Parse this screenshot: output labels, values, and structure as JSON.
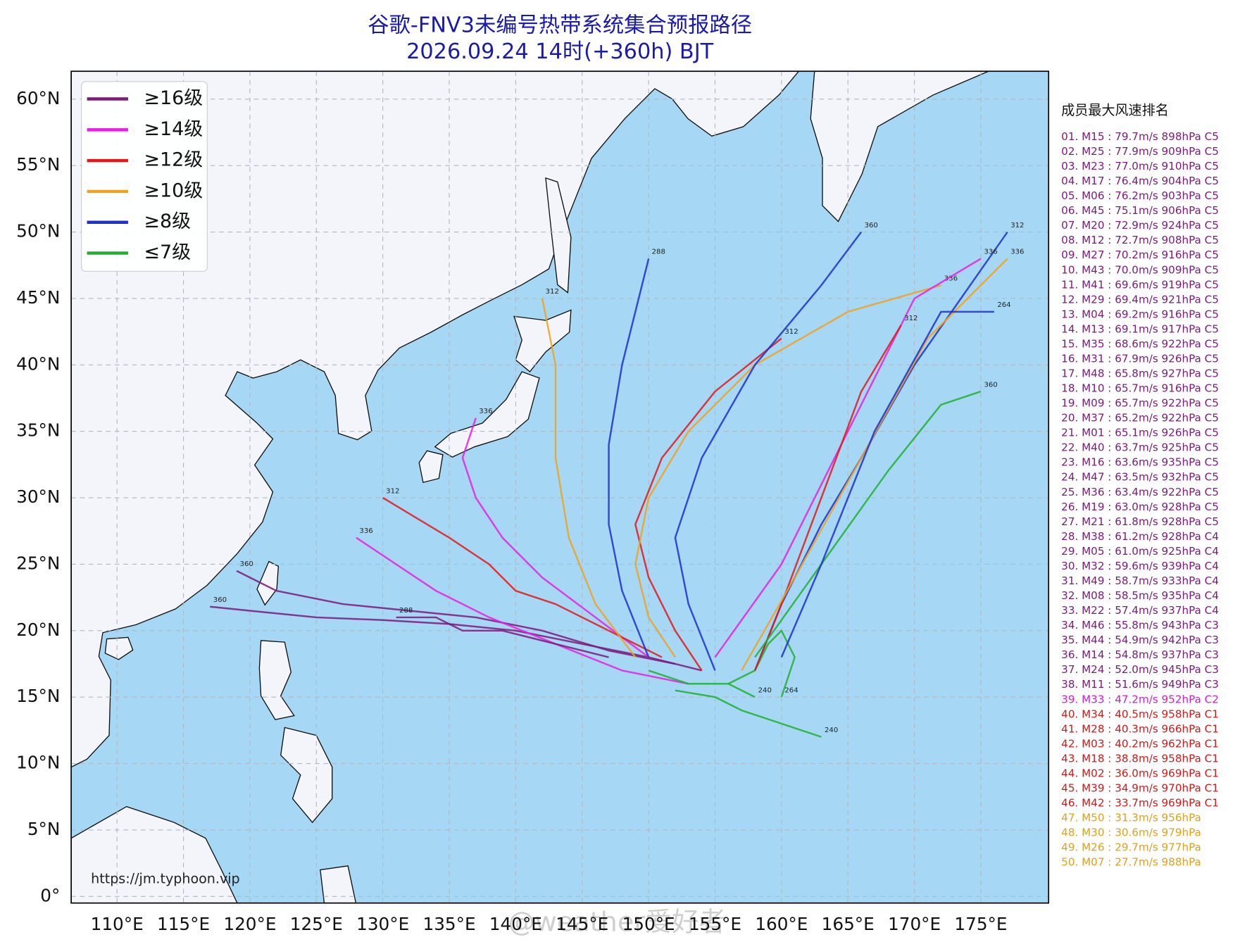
{
  "map": {
    "title": "谷歌-FNV3未编号热带系统集合预报路径",
    "subtitle": "2026.09.24 14时(+360h) BJT",
    "lonlim": [
      106.55,
      180.1
    ],
    "latlim": [
      -0.5,
      62.1
    ],
    "lonticks": [
      {
        "value": 110,
        "label": "110°E"
      },
      {
        "value": 115,
        "label": "115°E"
      },
      {
        "value": 120,
        "label": "120°E"
      },
      {
        "value": 125,
        "label": "125°E"
      },
      {
        "value": 130,
        "label": "130°E"
      },
      {
        "value": 135,
        "label": "135°E"
      },
      {
        "value": 140,
        "label": "140°E"
      },
      {
        "value": 145,
        "label": "145°E"
      },
      {
        "value": 150,
        "label": "150°E"
      },
      {
        "value": 155,
        "label": "155°E"
      },
      {
        "value": 160,
        "label": "160°E"
      },
      {
        "value": 165,
        "label": "165°E"
      },
      {
        "value": 170,
        "label": "170°E"
      },
      {
        "value": 175,
        "label": "175°E"
      }
    ],
    "latticks": [
      {
        "value": 0,
        "label": "0°"
      },
      {
        "value": 5,
        "label": "5°N"
      },
      {
        "value": 10,
        "label": "10°N"
      },
      {
        "value": 15,
        "label": "15°N"
      },
      {
        "value": 20,
        "label": "20°N"
      },
      {
        "value": 25,
        "label": "25°N"
      },
      {
        "value": 30,
        "label": "30°N"
      },
      {
        "value": 35,
        "label": "35°N"
      },
      {
        "value": 40,
        "label": "40°N"
      },
      {
        "value": 45,
        "label": "45°N"
      },
      {
        "value": 50,
        "label": "50°N"
      },
      {
        "value": 55,
        "label": "55°N"
      },
      {
        "value": 60,
        "label": "60°N"
      }
    ],
    "grid": true,
    "legend": [
      {
        "name": "≥16级",
        "color": "#7b1a7b"
      },
      {
        "name": "≥14级",
        "color": "#e61ee6"
      },
      {
        "name": "≥12级",
        "color": "#e01a1a"
      },
      {
        "name": "≥10级",
        "color": "#f0a21e"
      },
      {
        "name": "≥8级",
        "color": "#1f2fd0"
      },
      {
        "name": "≤7级",
        "color": "#20b030"
      }
    ],
    "tracks": [
      {
        "color": "#7b1a7b",
        "lon": [
          154,
          150,
          145,
          140,
          135,
          130,
          125,
          120,
          117
        ],
        "lat": [
          17,
          18,
          19,
          20,
          20.5,
          20.8,
          21,
          21.5,
          21.8
        ],
        "label": "360"
      },
      {
        "color": "#7b1a7b",
        "lon": [
          152,
          147,
          142,
          137,
          132,
          127,
          122,
          119
        ],
        "lat": [
          17.5,
          18.5,
          20,
          21,
          21.5,
          22,
          23,
          24.5
        ],
        "label": "360"
      },
      {
        "color": "#e61ee6",
        "lon": [
          153,
          148,
          143,
          138,
          134,
          131,
          128
        ],
        "lat": [
          16,
          17,
          19,
          21,
          23,
          25,
          27
        ],
        "label": "336"
      },
      {
        "color": "#e61ee6",
        "lon": [
          150,
          146,
          142,
          139,
          137,
          136,
          137
        ],
        "lat": [
          18,
          21,
          24,
          27,
          30,
          33,
          36
        ],
        "label": "336"
      },
      {
        "color": "#e01a1a",
        "lon": [
          151,
          147,
          143,
          140,
          138,
          135,
          130
        ],
        "lat": [
          18,
          20,
          22,
          23,
          25,
          27,
          30
        ],
        "label": "312"
      },
      {
        "color": "#e01a1a",
        "lon": [
          154,
          152,
          150,
          149,
          151,
          155,
          160
        ],
        "lat": [
          17,
          20,
          24,
          28,
          33,
          38,
          42
        ],
        "label": "312"
      },
      {
        "color": "#f0a21e",
        "lon": [
          152,
          150,
          149,
          150,
          153,
          158,
          165,
          172
        ],
        "lat": [
          18,
          21,
          25,
          30,
          35,
          40,
          44,
          46
        ],
        "label": "336"
      },
      {
        "color": "#f0a21e",
        "lon": [
          149,
          146,
          144,
          143,
          143,
          142
        ],
        "lat": [
          18,
          22,
          27,
          33,
          40,
          45
        ],
        "label": "312"
      },
      {
        "color": "#1f2fd0",
        "lon": [
          155,
          153,
          152,
          154,
          158,
          163,
          166
        ],
        "lat": [
          17,
          22,
          27,
          33,
          40,
          46,
          50
        ],
        "label": "360"
      },
      {
        "color": "#1f2fd0",
        "lon": [
          150,
          148,
          147,
          147,
          148,
          150
        ],
        "lat": [
          18,
          23,
          28,
          34,
          40,
          48
        ],
        "label": "288"
      },
      {
        "color": "#1f2fd0",
        "lon": [
          158,
          160,
          163,
          166,
          170,
          177
        ],
        "lat": [
          17,
          22,
          28,
          33,
          40,
          50
        ],
        "label": "312"
      },
      {
        "color": "#20b030",
        "lon": [
          156,
          158,
          159,
          160,
          161,
          160
        ],
        "lat": [
          16,
          17,
          19,
          20,
          18,
          15
        ],
        "label": "264"
      },
      {
        "color": "#20b030",
        "lon": [
          150,
          153,
          156,
          158
        ],
        "lat": [
          17,
          16,
          16,
          15
        ],
        "label": "240"
      },
      {
        "color": "#20b030",
        "lon": [
          152,
          155,
          157,
          160,
          163
        ],
        "lat": [
          15.5,
          15,
          14,
          13,
          12
        ],
        "label": "240"
      },
      {
        "color": "#7b1a7b",
        "lon": [
          147,
          143,
          139,
          136,
          134,
          131
        ],
        "lat": [
          18,
          19,
          20,
          20,
          21,
          21
        ],
        "label": "288"
      },
      {
        "color": "#e61ee6",
        "lon": [
          155,
          160,
          165,
          170,
          175
        ],
        "lat": [
          18,
          25,
          35,
          45,
          48
        ],
        "label": "336"
      },
      {
        "color": "#e01a1a",
        "lon": [
          158,
          160,
          163,
          166,
          169
        ],
        "lat": [
          17,
          22,
          30,
          38,
          43
        ],
        "label": "312"
      },
      {
        "color": "#f0a21e",
        "lon": [
          157,
          161,
          166,
          171,
          177
        ],
        "lat": [
          17,
          24,
          33,
          42,
          48
        ],
        "label": "336"
      },
      {
        "color": "#20b030",
        "lon": [
          158,
          163,
          168,
          172,
          175
        ],
        "lat": [
          18,
          25,
          32,
          37,
          38
        ],
        "label": "360"
      },
      {
        "color": "#1f2fd0",
        "lon": [
          160,
          163,
          167,
          172,
          176
        ],
        "lat": [
          18,
          25,
          35,
          44,
          44
        ],
        "label": "264"
      }
    ],
    "ranking_title": "成员最大风速排名",
    "ranking": [
      {
        "text": "01. M15 : 79.7m/s 898hPa C5",
        "color": "#7b1a7b"
      },
      {
        "text": "02. M25 : 77.9m/s 909hPa C5",
        "color": "#7b1a7b"
      },
      {
        "text": "03. M23 : 77.0m/s 910hPa C5",
        "color": "#7b1a7b"
      },
      {
        "text": "04. M17 : 76.4m/s 904hPa C5",
        "color": "#7b1a7b"
      },
      {
        "text": "05. M06 : 76.2m/s 903hPa C5",
        "color": "#7b1a7b"
      },
      {
        "text": "06. M45 : 75.1m/s 906hPa C5",
        "color": "#7b1a7b"
      },
      {
        "text": "07. M20 : 72.9m/s 924hPa C5",
        "color": "#7b1a7b"
      },
      {
        "text": "08. M12 : 72.7m/s 908hPa C5",
        "color": "#7b1a7b"
      },
      {
        "text": "09. M27 : 70.2m/s 916hPa C5",
        "color": "#7b1a7b"
      },
      {
        "text": "10. M43 : 70.0m/s 909hPa C5",
        "color": "#7b1a7b"
      },
      {
        "text": "11. M41 : 69.6m/s 919hPa C5",
        "color": "#7b1a7b"
      },
      {
        "text": "12. M29 : 69.4m/s 921hPa C5",
        "color": "#7b1a7b"
      },
      {
        "text": "13. M04 : 69.2m/s 916hPa C5",
        "color": "#7b1a7b"
      },
      {
        "text": "14. M13 : 69.1m/s 917hPa C5",
        "color": "#7b1a7b"
      },
      {
        "text": "15. M35 : 68.6m/s 922hPa C5",
        "color": "#7b1a7b"
      },
      {
        "text": "16. M31 : 67.9m/s 926hPa C5",
        "color": "#7b1a7b"
      },
      {
        "text": "17. M48 : 65.8m/s 927hPa C5",
        "color": "#7b1a7b"
      },
      {
        "text": "18. M10 : 65.7m/s 916hPa C5",
        "color": "#7b1a7b"
      },
      {
        "text": "19. M09 : 65.7m/s 922hPa C5",
        "color": "#7b1a7b"
      },
      {
        "text": "20. M37 : 65.2m/s 922hPa C5",
        "color": "#7b1a7b"
      },
      {
        "text": "21. M01 : 65.1m/s 926hPa C5",
        "color": "#7b1a7b"
      },
      {
        "text": "22. M40 : 63.7m/s 925hPa C5",
        "color": "#7b1a7b"
      },
      {
        "text": "23. M16 : 63.6m/s 935hPa C5",
        "color": "#7b1a7b"
      },
      {
        "text": "24. M47 : 63.5m/s 932hPa C5",
        "color": "#7b1a7b"
      },
      {
        "text": "25. M36 : 63.4m/s 922hPa C5",
        "color": "#7b1a7b"
      },
      {
        "text": "26. M19 : 63.0m/s 928hPa C5",
        "color": "#7b1a7b"
      },
      {
        "text": "27. M21 : 61.8m/s 928hPa C5",
        "color": "#7b1a7b"
      },
      {
        "text": "28. M38 : 61.2m/s 928hPa C4",
        "color": "#7b1a7b"
      },
      {
        "text": "29. M05 : 61.0m/s 925hPa C4",
        "color": "#7b1a7b"
      },
      {
        "text": "30. M32 : 59.6m/s 939hPa C4",
        "color": "#7b1a7b"
      },
      {
        "text": "31. M49 : 58.7m/s 933hPa C4",
        "color": "#7b1a7b"
      },
      {
        "text": "32. M08 : 58.5m/s 935hPa C4",
        "color": "#7b1a7b"
      },
      {
        "text": "33. M22 : 57.4m/s 937hPa C4",
        "color": "#7b1a7b"
      },
      {
        "text": "34. M46 : 55.8m/s 943hPa C3",
        "color": "#7b1a7b"
      },
      {
        "text": "35. M44 : 54.9m/s 942hPa C3",
        "color": "#7b1a7b"
      },
      {
        "text": "36. M14 : 54.8m/s 937hPa C3",
        "color": "#7b1a7b"
      },
      {
        "text": "37. M24 : 52.0m/s 945hPa C3",
        "color": "#7b1a7b"
      },
      {
        "text": "38. M11 : 51.6m/s 949hPa C3",
        "color": "#7b1a7b"
      },
      {
        "text": "39. M33 : 47.2m/s 952hPa C2",
        "color": "#d01ed0"
      },
      {
        "text": "40. M34 : 40.5m/s 958hPa C1",
        "color": "#d01a1a"
      },
      {
        "text": "41. M28 : 40.3m/s 966hPa C1",
        "color": "#d01a1a"
      },
      {
        "text": "42. M03 : 40.2m/s 962hPa C1",
        "color": "#d01a1a"
      },
      {
        "text": "43. M18 : 38.8m/s 958hPa C1",
        "color": "#d01a1a"
      },
      {
        "text": "44. M02 : 36.0m/s 969hPa C1",
        "color": "#d01a1a"
      },
      {
        "text": "45. M39 : 34.9m/s 970hPa C1",
        "color": "#d01a1a"
      },
      {
        "text": "46. M42 : 33.7m/s 969hPa C1",
        "color": "#d01a1a"
      },
      {
        "text": "47. M50 : 31.3m/s 956hPa",
        "color": "#e0a020"
      },
      {
        "text": "48. M30 : 30.6m/s 979hPa",
        "color": "#e0a020"
      },
      {
        "text": "49. M26 : 29.7m/s 977hPa",
        "color": "#e0a020"
      },
      {
        "text": "50. M07 : 27.7m/s 988hPa",
        "color": "#e0a020"
      }
    ],
    "source": "https://jm.typhoon.vip",
    "watermark": "@weather爱好者"
  }
}
